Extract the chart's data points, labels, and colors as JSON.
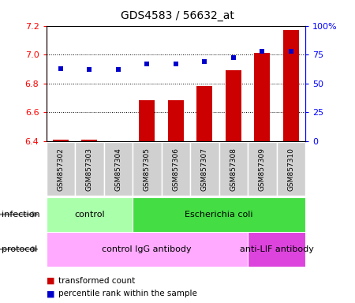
{
  "title": "GDS4583 / 56632_at",
  "samples": [
    "GSM857302",
    "GSM857303",
    "GSM857304",
    "GSM857305",
    "GSM857306",
    "GSM857307",
    "GSM857308",
    "GSM857309",
    "GSM857310"
  ],
  "transformed_count": [
    6.41,
    6.41,
    6.4,
    6.68,
    6.68,
    6.78,
    6.89,
    7.01,
    7.17
  ],
  "percentile_rank": [
    63,
    62,
    62,
    67,
    67,
    69,
    72,
    78,
    78
  ],
  "ylim_left": [
    6.4,
    7.2
  ],
  "ylim_right": [
    0,
    100
  ],
  "yticks_left": [
    6.4,
    6.6,
    6.8,
    7.0,
    7.2
  ],
  "yticks_right": [
    0,
    25,
    50,
    75,
    100
  ],
  "bar_color": "#cc0000",
  "dot_color": "#0000cc",
  "infection_groups": [
    {
      "label": "control",
      "start": 0,
      "end": 3,
      "color": "#aaffaa"
    },
    {
      "label": "Escherichia coli",
      "start": 3,
      "end": 9,
      "color": "#44dd44"
    }
  ],
  "protocol_groups": [
    {
      "label": "control IgG antibody",
      "start": 0,
      "end": 7,
      "color": "#ffaaff"
    },
    {
      "label": "anti-LIF antibody",
      "start": 7,
      "end": 9,
      "color": "#dd44dd"
    }
  ],
  "legend_items": [
    {
      "label": "transformed count",
      "color": "#cc0000"
    },
    {
      "label": "percentile rank within the sample",
      "color": "#0000cc"
    }
  ],
  "infection_label": "infection",
  "protocol_label": "protocol",
  "bar_width": 0.55,
  "sample_bg": "#d0d0d0",
  "title_fontsize": 10,
  "axis_fontsize": 8,
  "label_fontsize": 8,
  "sample_fontsize": 6.5
}
